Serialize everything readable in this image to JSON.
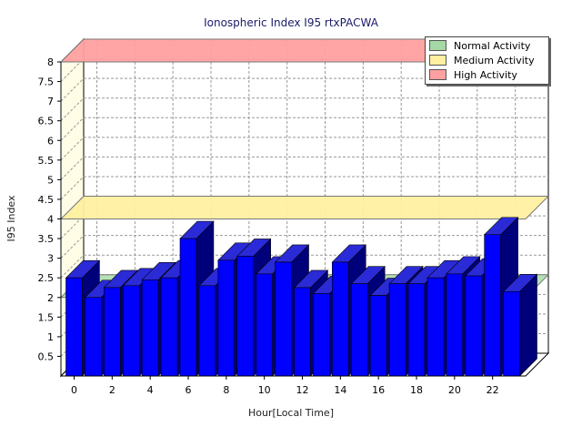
{
  "chart_data": {
    "type": "bar",
    "title": "Ionospheric Index I95 rtxPACWA",
    "xlabel": "Hour[Local Time]",
    "ylabel": "I95 Index",
    "ylim": [
      0,
      8
    ],
    "yticks": [
      "0.5",
      "1",
      "1.5",
      "2",
      "2.5",
      "3",
      "3.5",
      "4",
      "4.5",
      "5",
      "5.5",
      "6",
      "6.5",
      "7",
      "7.5",
      "8"
    ],
    "xticks": [
      "0",
      "2",
      "4",
      "6",
      "8",
      "10",
      "12",
      "14",
      "16",
      "18",
      "20",
      "22"
    ],
    "categories": [
      0,
      1,
      2,
      3,
      4,
      5,
      6,
      7,
      8,
      9,
      10,
      11,
      12,
      13,
      14,
      15,
      16,
      17,
      18,
      19,
      20,
      21,
      22,
      23
    ],
    "values": [
      2.5,
      2.0,
      2.25,
      2.3,
      2.45,
      2.5,
      3.5,
      2.3,
      2.95,
      3.05,
      2.6,
      2.9,
      2.25,
      2.1,
      2.9,
      2.35,
      2.05,
      2.35,
      2.35,
      2.5,
      2.6,
      2.55,
      3.6,
      2.15
    ],
    "bands": [
      {
        "name": "Normal Activity",
        "color": "#a4d8a4",
        "from": 0,
        "to": 2
      },
      {
        "name": "Medium Activity",
        "color": "#fff0a0",
        "from": 4,
        "to": 4
      },
      {
        "name": "High Activity",
        "color": "#ffa0a0",
        "from": 8,
        "to": 8
      }
    ],
    "bar_color": "#0000ff",
    "grid": true,
    "legend_position": "top-right"
  }
}
